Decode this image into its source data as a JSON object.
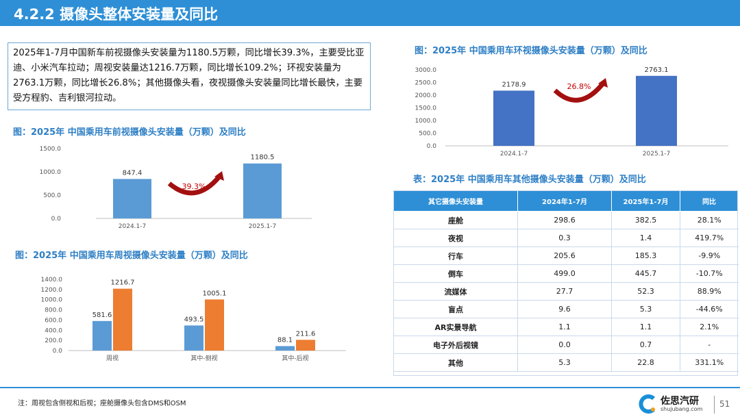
{
  "header": {
    "title": "4.2.2 摄像头整体安装量及同比"
  },
  "summary": {
    "text": "2025年1-7月中国新车前视摄像头安装量为1180.5万颗，同比增长39.3%，主要受比亚迪、小米汽车拉动；周视安装量达1216.7万颗，同比增长109.2%；环视安装量为2763.1万颗，同比增长26.8%；其他摄像头看，夜视摄像头安装量同比增长最快，主要受方程豹、吉利银河拉动。"
  },
  "colors": {
    "header": "#2e8fd6",
    "bar_blue_front": "#5b9bd5",
    "bar_blue_surround": "#4472c4",
    "bar_orange": "#ed7d31",
    "arrow": "#a31010",
    "title_blue": "#2e7fc5"
  },
  "chart_data": [
    {
      "id": "front",
      "type": "bar",
      "title": "图：2025年 中国乘用车前视摄像头安装量（万颗）及同比",
      "categories": [
        "2024.1-7",
        "2025.1-7"
      ],
      "values": [
        847.4,
        1180.5
      ],
      "data_labels": [
        "847.4",
        "1180.5"
      ],
      "yticks": [
        "1500.0",
        "1000.0",
        "500.0",
        "0.0"
      ],
      "ylim": [
        0,
        1500
      ],
      "growth_label": "39.3%",
      "grid": false
    },
    {
      "id": "surround",
      "type": "bar",
      "title": "图：2025年 中国乘用车环视摄像头安装量（万颗）及同比",
      "categories": [
        "2024.1-7",
        "2025.1-7"
      ],
      "values": [
        2178.9,
        2763.1
      ],
      "data_labels": [
        "2178.9",
        "2763.1"
      ],
      "yticks": [
        "3000.0",
        "2500.0",
        "2000.0",
        "1500.0",
        "1000.0",
        "500.0",
        "0.0"
      ],
      "ylim": [
        0,
        3000
      ],
      "growth_label": "26.8%",
      "grid": false
    },
    {
      "id": "side",
      "type": "bar",
      "title": "图：2025年 中国乘用车周视摄像头安装量（万颗）及同比",
      "categories": [
        "周视",
        "其中-侧视",
        "其中-后视"
      ],
      "series": [
        {
          "values": [
            581.6,
            493.5,
            88.1
          ],
          "labels": [
            "581.6",
            "493.5",
            "88.1"
          ]
        },
        {
          "values": [
            1216.7,
            1005.1,
            211.6
          ],
          "labels": [
            "1216.7",
            "1005.1",
            "211.6"
          ]
        }
      ],
      "yticks": [
        "1400.0",
        "1200.0",
        "1000.0",
        "800.0",
        "600.0",
        "400.0",
        "200.0",
        "0.0"
      ],
      "ylim": [
        0,
        1400
      ],
      "grid": false
    }
  ],
  "table": {
    "title": "表：2025年 中国乘用车其他摄像头安装量（万颗）及同比",
    "headers": [
      "其它摄像头安装量",
      "2024年1-7月",
      "2025年1-7月",
      "同比"
    ],
    "rows": [
      [
        "座舱",
        "298.6",
        "382.5",
        "28.1%"
      ],
      [
        "夜视",
        "0.3",
        "1.4",
        "419.7%"
      ],
      [
        "行车",
        "205.6",
        "185.3",
        "-9.9%"
      ],
      [
        "倒车",
        "499.0",
        "445.7",
        "-10.7%"
      ],
      [
        "流媒体",
        "27.7",
        "52.3",
        "88.9%"
      ],
      [
        "盲点",
        "9.6",
        "5.3",
        "-44.6%"
      ],
      [
        "AR实景导航",
        "1.1",
        "1.1",
        "2.1%"
      ],
      [
        "电子外后视镜",
        "0.0",
        "0.7",
        "-"
      ],
      [
        "其他",
        "5.3",
        "22.8",
        "331.1%"
      ]
    ]
  },
  "footer": {
    "note": "注：周视包含侧视和后视；座舱摄像头包含DMS和OSM",
    "logo_text": "佐思汽研",
    "logo_sub": "shujubang.com",
    "page_number": "51"
  }
}
